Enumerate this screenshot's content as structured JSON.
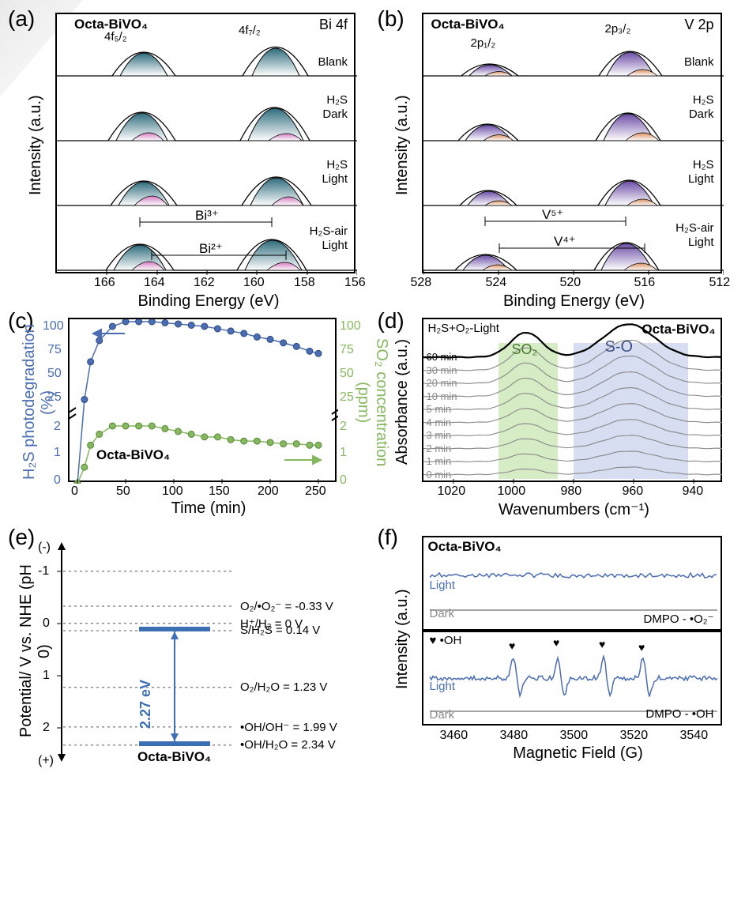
{
  "panel_a": {
    "label": "(a)",
    "title": "Octa-BiVO₄",
    "right_label": "Bi 4f",
    "ylabel": "Intensity (a.u.)",
    "xlabel": "Binding Energy (eV)",
    "xlim": [
      168,
      156
    ],
    "xticks": [
      "166",
      "164",
      "162",
      "160",
      "158",
      "156"
    ],
    "peaks": [
      "4f₅/₂",
      "4f₇/₂"
    ],
    "rows": [
      "Blank",
      "H₂S Dark",
      "H₂S Light",
      "H₂S-air Light"
    ],
    "row2": [
      "",
      "Dark",
      "Light",
      "Light"
    ],
    "species_labels": [
      "Bi³⁺",
      "Bi²⁺"
    ],
    "colors": {
      "peak_main": "#2e6b7c",
      "peak_sub": "#d37cc0",
      "stroke": "#000"
    }
  },
  "panel_b": {
    "label": "(b)",
    "title": "Octa-BiVO₄",
    "right_label": "V 2p",
    "ylabel": "Intensity (a.u.)",
    "xlabel": "Binding Energy (eV)",
    "xlim": [
      528,
      512
    ],
    "xticks": [
      "528",
      "524",
      "520",
      "516",
      "512"
    ],
    "peaks": [
      "2p₁/₂",
      "2p₃/₂"
    ],
    "rows": [
      "Blank",
      "H₂S Dark",
      "H₂S Light",
      "H₂S-air Light"
    ],
    "species_labels": [
      "V⁵⁺",
      "V⁴⁺"
    ],
    "colors": {
      "peak_main": "#6b4da6",
      "peak_sub": "#d98f5f",
      "stroke": "#000"
    }
  },
  "panel_c": {
    "label": "(c)",
    "title": "Octa-BiVO₄",
    "ylabel_left": "H₂S photodegradation (%)",
    "ylabel_right": "SO₂ concentration (ppm)",
    "left_color": "#4a6db3",
    "right_color": "#86b85f",
    "xlabel": "Time (min)",
    "xticks": [
      "0",
      "50",
      "100",
      "150",
      "200",
      "250"
    ],
    "left_yticks_top": [
      "25",
      "50",
      "75",
      "100"
    ],
    "yticks_bot": [
      "0",
      "1",
      "2"
    ],
    "right_yticks_top": [
      "25",
      "50",
      "75",
      "100"
    ],
    "times": [
      0,
      8,
      15,
      25,
      40,
      55,
      70,
      85,
      100,
      115,
      130,
      145,
      160,
      175,
      190,
      205,
      220,
      235,
      250,
      265,
      275
    ],
    "degradation": [
      0,
      32,
      64,
      82,
      94,
      98,
      98,
      98,
      97,
      96,
      95,
      94,
      92,
      90,
      88,
      85,
      83,
      80,
      77,
      73,
      71
    ],
    "so2": [
      0,
      0.6,
      1.4,
      1.8,
      2.1,
      2.1,
      2.1,
      2.1,
      2.0,
      1.9,
      1.8,
      1.7,
      1.7,
      1.6,
      1.55,
      1.55,
      1.5,
      1.45,
      1.45,
      1.4,
      1.4
    ]
  },
  "panel_d": {
    "label": "(d)",
    "title_right": "Octa-BiVO₄",
    "title_left": "H₂S+O₂-Light",
    "ylabel": "Absorbance (a.u.)",
    "xlabel": "Wavenumbers (cm⁻¹)",
    "xticks": [
      "1020",
      "1000",
      "980",
      "960",
      "940"
    ],
    "region1_label": "SO₂",
    "region1_color": "#c8e6b0",
    "region2_label": "S-O",
    "region2_color": "#c9d3ec",
    "times": [
      "60 min",
      "30 min",
      "20 min",
      "10 min",
      "5 min",
      "4 min",
      "3 min",
      "2 min",
      "1 min",
      "0 min"
    ]
  },
  "panel_e": {
    "label": "(e)",
    "ylabel": "Potential/ V vs. NHE (pH 0)",
    "material": "Octa-BiVO₄",
    "gap": "2.27 eV",
    "gap_color": "#3d6fb5",
    "levels": [
      {
        "y": -1,
        "txt": ""
      },
      {
        "y": -0.33,
        "txt": "O₂/•O₂⁻ = -0.33 V"
      },
      {
        "y": 0,
        "txt": "H⁺/H₂ = 0 V"
      },
      {
        "y": 0.14,
        "txt": "S/H₂S = 0.14 V"
      },
      {
        "y": 1.23,
        "txt": "O₂/H₂O = 1.23 V"
      },
      {
        "y": 1.99,
        "txt": "•OH/OH⁻ = 1.99 V"
      },
      {
        "y": 2.34,
        "txt": "•OH/H₂O = 2.34 V"
      }
    ],
    "yticks": [
      "(-)",
      "-1",
      "0",
      "1",
      "2",
      "(+)"
    ]
  },
  "panel_f": {
    "label": "(f)",
    "title": "Octa-BiVO₄",
    "ylabel": "Intensity (a.u.)",
    "xlabel": "Magnetic Field (G)",
    "xticks": [
      "3460",
      "3480",
      "3500",
      "3520",
      "3540"
    ],
    "light_color": "#4a6db3",
    "dark_color": "#888888",
    "species_top": "DMPO - •O₂⁻",
    "species_bot": "DMPO - •OH",
    "legend_oh": "♥ •OH",
    "row_labels": [
      "Light",
      "Dark",
      "Light",
      "Dark"
    ]
  }
}
